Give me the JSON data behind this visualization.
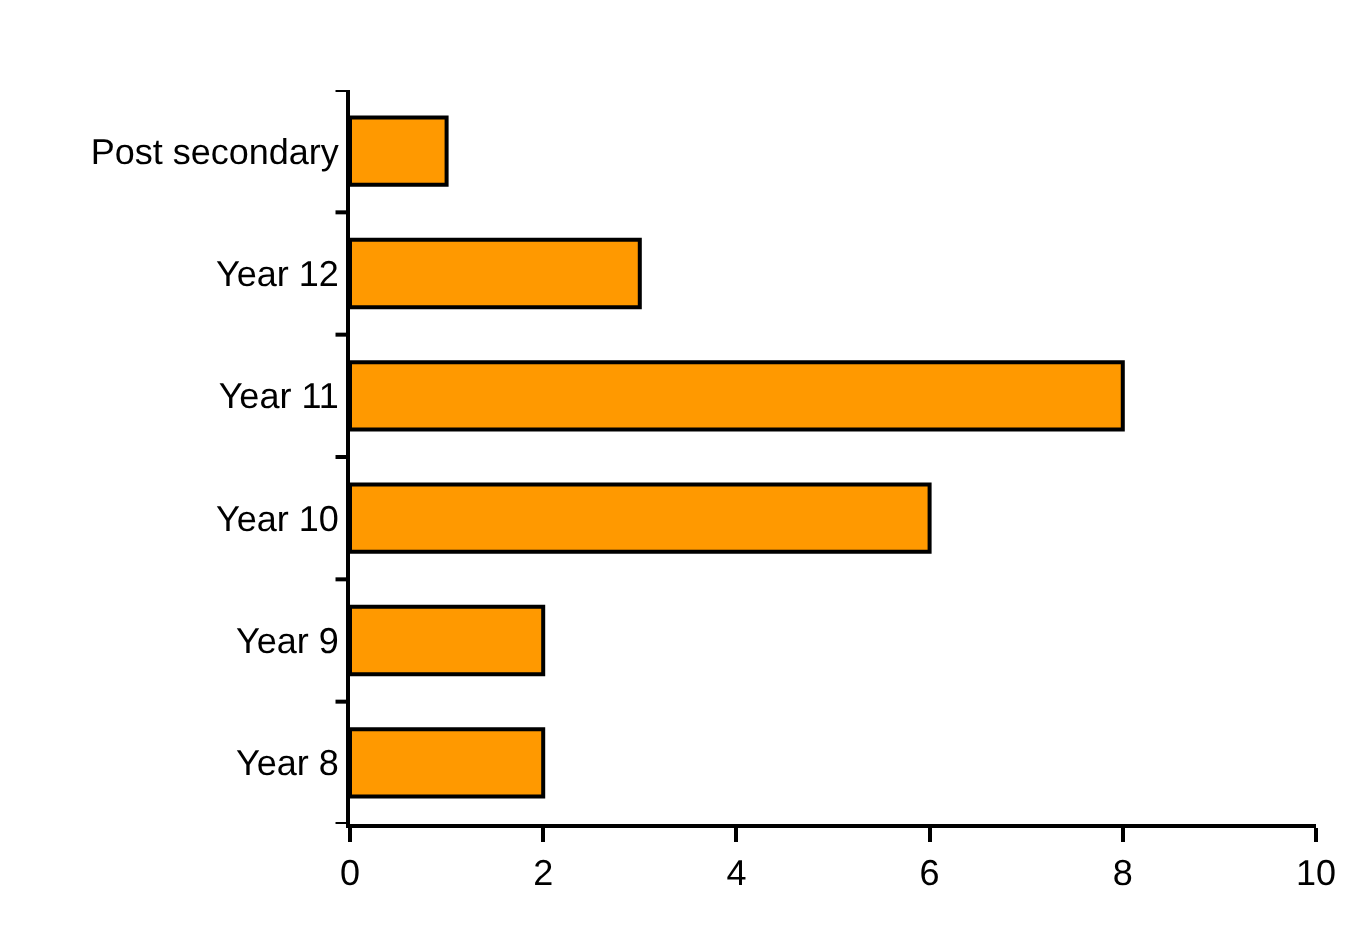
{
  "chart_data": {
    "type": "bar",
    "orientation": "horizontal",
    "categories": [
      "Post secondary",
      "Year 12",
      "Year 11",
      "Year 10",
      "Year 9",
      "Year 8"
    ],
    "values": [
      1,
      3,
      8,
      6,
      2,
      2
    ],
    "color": "#ff9900",
    "xlim": [
      0,
      10
    ],
    "xticks": [
      0,
      2,
      4,
      6,
      8,
      10
    ]
  }
}
